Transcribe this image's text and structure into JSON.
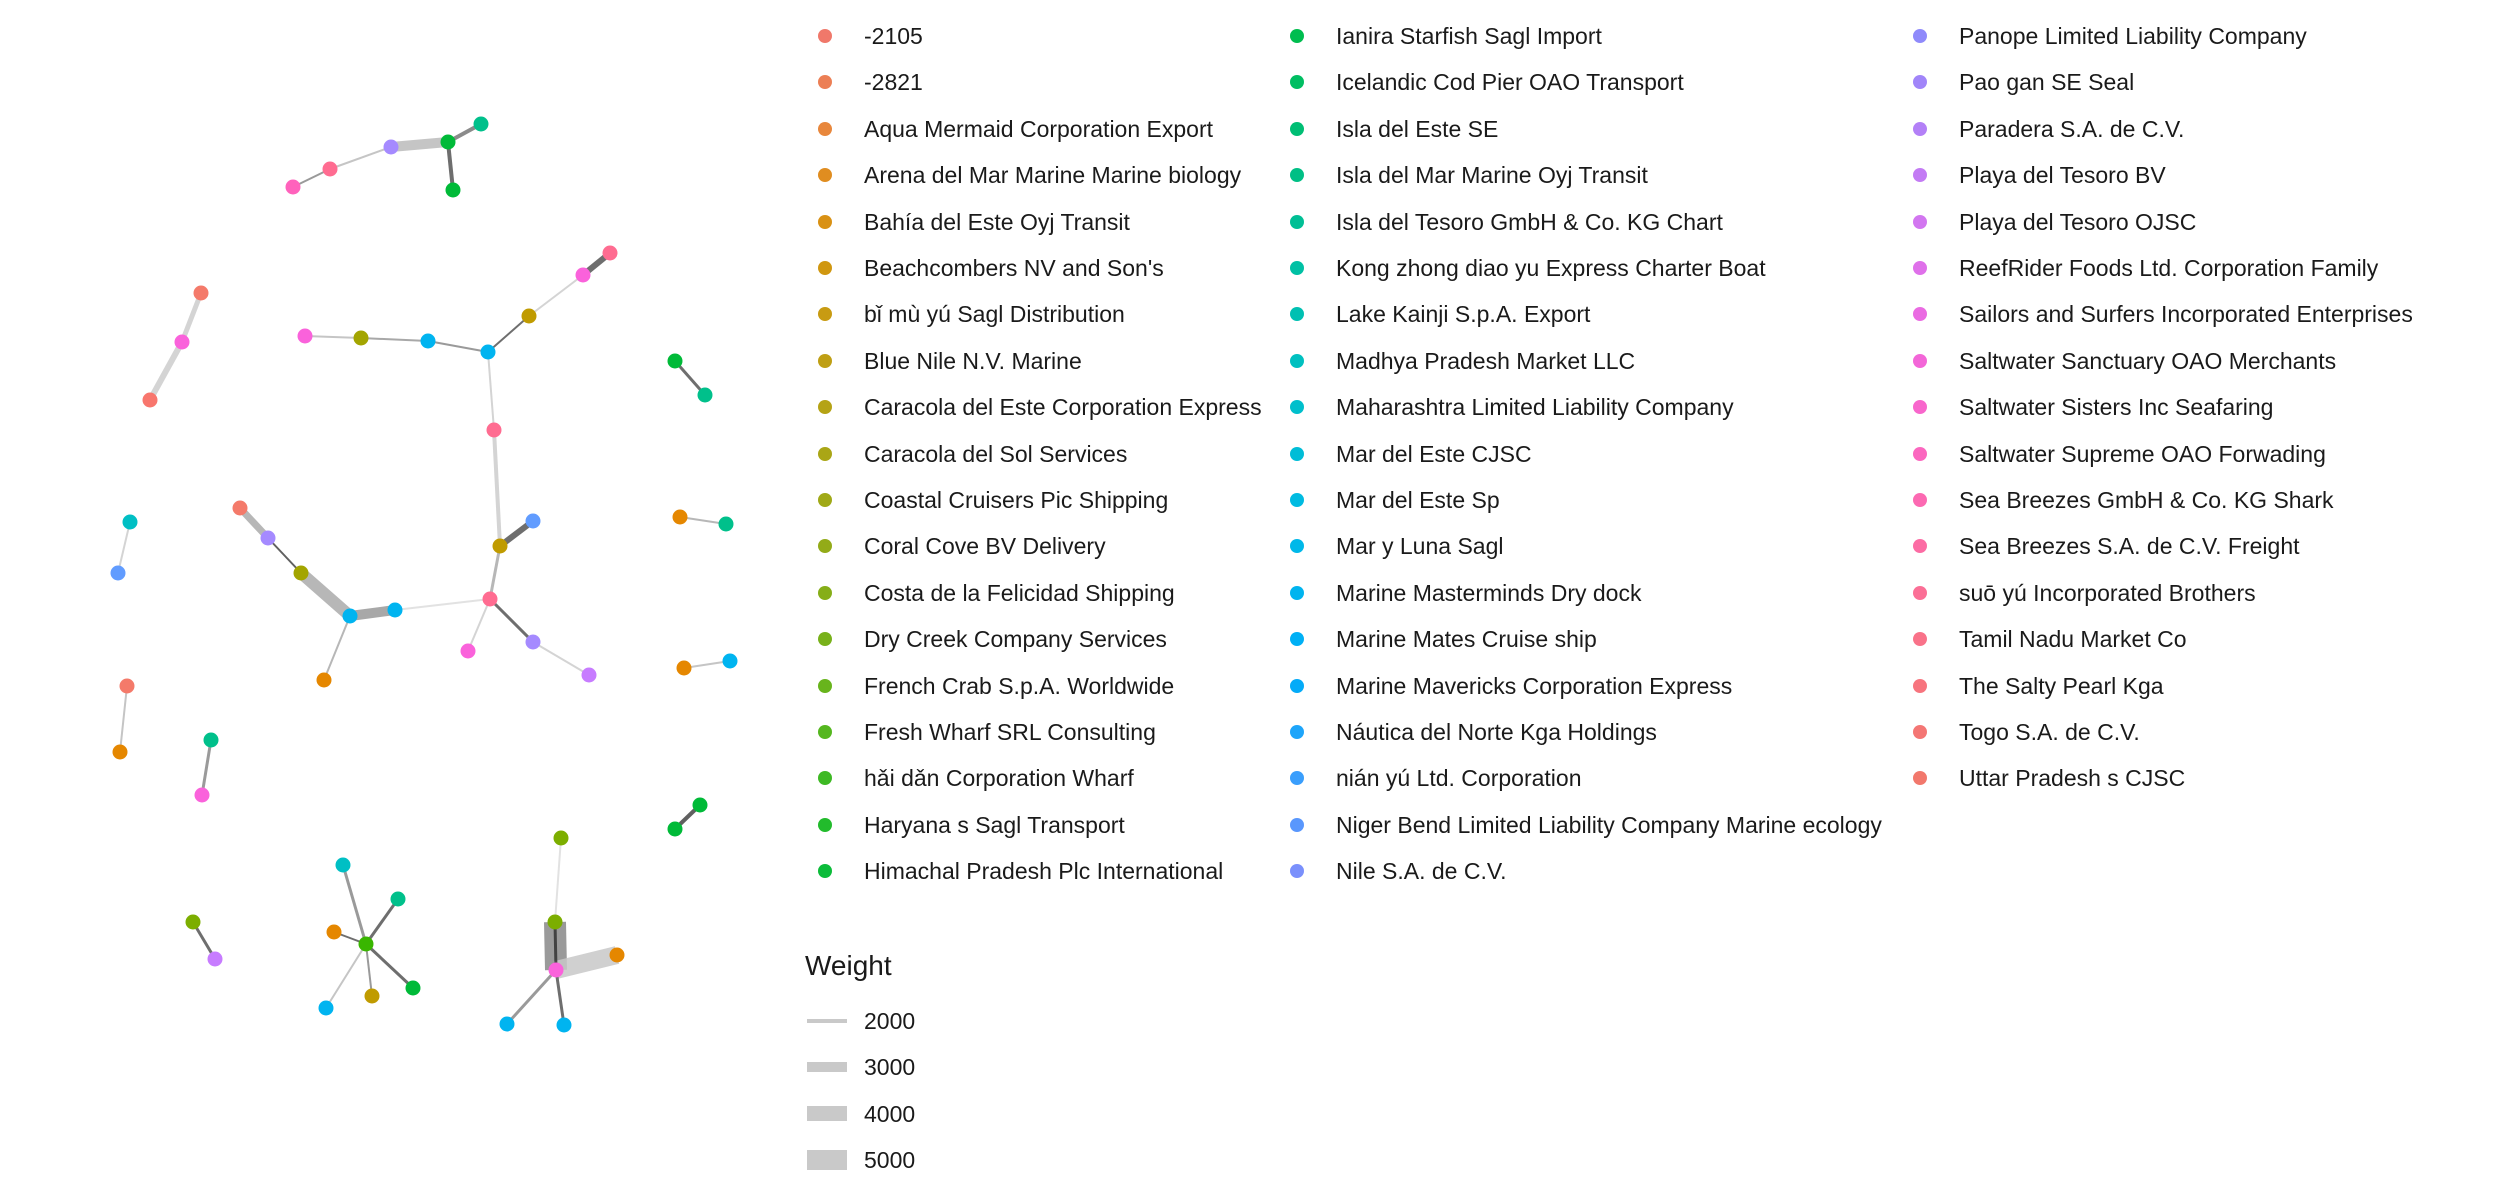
{
  "legend_entries": [
    {
      "label": "-2105",
      "color": "#f0786a"
    },
    {
      "label": "-2821",
      "color": "#ec7f55"
    },
    {
      "label": "Aqua Mermaid Corporation Export",
      "color": "#e8873c"
    },
    {
      "label": "Arena del Mar Marine Marine biology",
      "color": "#e08d20"
    },
    {
      "label": "Bahía del Este Oyj Transit",
      "color": "#d99114"
    },
    {
      "label": "Beachcombers NV and Son's",
      "color": "#d09710"
    },
    {
      "label": "bǐ mù yú Sagl Distribution",
      "color": "#c89b12"
    },
    {
      "label": "Blue Nile  N.V. Marine",
      "color": "#bf9f14"
    },
    {
      "label": "Caracola del Este Corporation Express",
      "color": "#b5a315"
    },
    {
      "label": "Caracola del Sol Services",
      "color": "#aaa616"
    },
    {
      "label": "Coastal Cruisers Pic Shipping",
      "color": "#a0a917"
    },
    {
      "label": "Coral Cove BV Delivery",
      "color": "#93ab18"
    },
    {
      "label": "Costa de la Felicidad Shipping",
      "color": "#86ae18"
    },
    {
      "label": "Dry Creek Company Services",
      "color": "#78b11a"
    },
    {
      "label": "French Crab S.p.A. Worldwide",
      "color": "#68b41c"
    },
    {
      "label": "Fresh Wharf SRL Consulting",
      "color": "#55b71f"
    },
    {
      "label": "hǎi dǎn Corporation Wharf",
      "color": "#3eb924"
    },
    {
      "label": "Haryana s Sagl Transport",
      "color": "#22bb2c"
    },
    {
      "label": "Himachal Pradesh   Plc International",
      "color": "#0cbc3a"
    },
    {
      "label": "Ianira Starfish Sagl Import",
      "color": "#00bd4f"
    },
    {
      "label": "Icelandic Cod Pier OAO Transport",
      "color": "#00be62"
    },
    {
      "label": "Isla del Este SE",
      "color": "#00be74"
    },
    {
      "label": "Isla del Mar Marine Oyj Transit",
      "color": "#00bf85"
    },
    {
      "label": "Isla del Tesoro GmbH & Co. KG Chart",
      "color": "#00bf95"
    },
    {
      "label": "Kong zhong diao yu  Express Charter Boat",
      "color": "#00c0a4"
    },
    {
      "label": "Lake Kainji  S.p.A. Export",
      "color": "#00c0b2"
    },
    {
      "label": "Madhya Pradesh  Market LLC",
      "color": "#00c0c0"
    },
    {
      "label": "Maharashtra   Limited Liability Company",
      "color": "#00bfcc"
    },
    {
      "label": "Mar del Este CJSC",
      "color": "#00bdd7"
    },
    {
      "label": "Mar del Este Sp",
      "color": "#00bbe1"
    },
    {
      "label": "Mar y Luna Sagl",
      "color": "#00b8e9"
    },
    {
      "label": "Marine Masterminds Dry dock",
      "color": "#00b4ef"
    },
    {
      "label": "Marine Mates Cruise ship",
      "color": "#00b0f5"
    },
    {
      "label": "Marine Mavericks Corporation Express",
      "color": "#04abf8"
    },
    {
      "label": "Náutica del Norte Kga Holdings",
      "color": "#1ea5fa"
    },
    {
      "label": "nián yú Ltd. Corporation",
      "color": "#3a9efc"
    },
    {
      "label": "Niger Bend   Limited Liability Company Marine ecology",
      "color": "#5997fd"
    },
    {
      "label": "Nile   S.A. de C.V.",
      "color": "#7a90fc"
    },
    {
      "label": "Panope Limited Liability Company",
      "color": "#8f8afb"
    },
    {
      "label": "Pao gan SE Seal",
      "color": "#a185f9"
    },
    {
      "label": "Paradera S.A. de C.V.",
      "color": "#b380f7"
    },
    {
      "label": "Playa del Tesoro BV",
      "color": "#c37bf4"
    },
    {
      "label": "Playa del Tesoro OJSC",
      "color": "#d276f0"
    },
    {
      "label": "ReefRider Foods Ltd. Corporation Family",
      "color": "#df70ea"
    },
    {
      "label": "Sailors and Surfers Incorporated Enterprises",
      "color": "#ea6be2"
    },
    {
      "label": "Saltwater Sanctuary OAO Merchants",
      "color": "#f366d8"
    },
    {
      "label": "Saltwater Sisters Inc Seafaring",
      "color": "#f866cc"
    },
    {
      "label": "Saltwater Supreme OAO Forwading",
      "color": "#fb67bf"
    },
    {
      "label": "Sea Breezes GmbH & Co. KG Shark",
      "color": "#fc69b2"
    },
    {
      "label": "Sea Breezes S.A. de C.V. Freight",
      "color": "#fc6ca4"
    },
    {
      "label": "suō yú Incorporated Brothers",
      "color": "#fb6f96"
    },
    {
      "label": "Tamil Nadu  Market Co",
      "color": "#f97289"
    },
    {
      "label": "The Salty Pearl Kga",
      "color": "#f7747e"
    },
    {
      "label": "Togo  S.A. de C.V.",
      "color": "#f47674"
    },
    {
      "label": "Uttar Pradesh s CJSC",
      "color": "#f2786c"
    }
  ],
  "weight_legend": {
    "title": "Weight",
    "entries": [
      {
        "label": "2000",
        "value": 2000
      },
      {
        "label": "3000",
        "value": 3000
      },
      {
        "label": "4000",
        "value": 4000
      },
      {
        "label": "5000",
        "value": 5000
      }
    ]
  }
}
